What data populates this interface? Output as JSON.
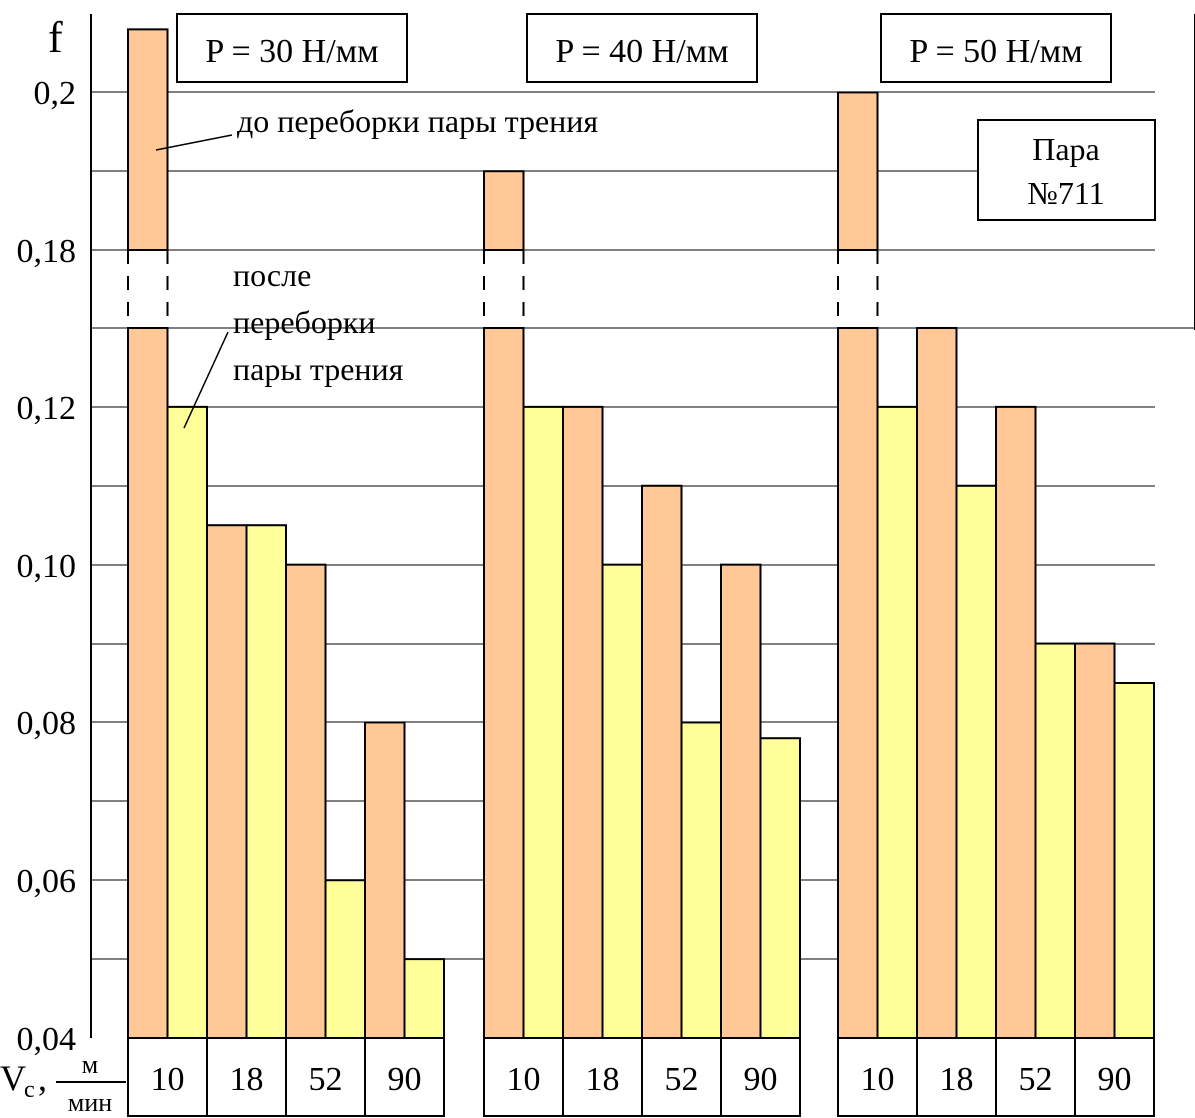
{
  "chart_data": {
    "type": "bar",
    "ylabel": "f",
    "xlabel": {
      "prefix": "V",
      "subscript": "c",
      "unit_numerator": "м",
      "unit_denominator": "мин"
    },
    "yticks": [
      "0,04",
      "0,06",
      "0,08",
      "0,10",
      "0,12",
      "0,18",
      "0,2"
    ],
    "y_axis_break": {
      "lower_max": 0.13,
      "upper_min": 0.17
    },
    "ylim": [
      0.04,
      0.21
    ],
    "grid": true,
    "groups": [
      {
        "label": "P = 30 Н/мм",
        "categories": [
          "10",
          "18",
          "52",
          "90"
        ],
        "series": [
          {
            "key": "before",
            "values": [
              0.208,
              0.105,
              0.1,
              0.08
            ]
          },
          {
            "key": "after",
            "values": [
              0.12,
              0.105,
              0.06,
              0.05
            ]
          }
        ]
      },
      {
        "label": "P = 40 Н/мм",
        "categories": [
          "10",
          "18",
          "52",
          "90"
        ],
        "series": [
          {
            "key": "before",
            "values": [
              0.19,
              0.12,
              0.11,
              0.1
            ]
          },
          {
            "key": "after",
            "values": [
              0.12,
              0.1,
              0.08,
              0.078
            ]
          }
        ]
      },
      {
        "label": "P = 50 Н/мм",
        "categories": [
          "10",
          "18",
          "52",
          "90"
        ],
        "series": [
          {
            "key": "before",
            "values": [
              0.2,
              0.13,
              0.12,
              0.09
            ]
          },
          {
            "key": "after",
            "values": [
              0.12,
              0.11,
              0.09,
              0.085
            ]
          }
        ]
      }
    ],
    "annotations": {
      "before": "до переборки пары трения",
      "after": [
        "после",
        "переборки",
        "пары трения"
      ],
      "pair": [
        "Пара",
        "№711"
      ]
    },
    "colors": {
      "before": "#FFC896",
      "after": "#FFFF9A",
      "stroke": "#000000"
    }
  }
}
